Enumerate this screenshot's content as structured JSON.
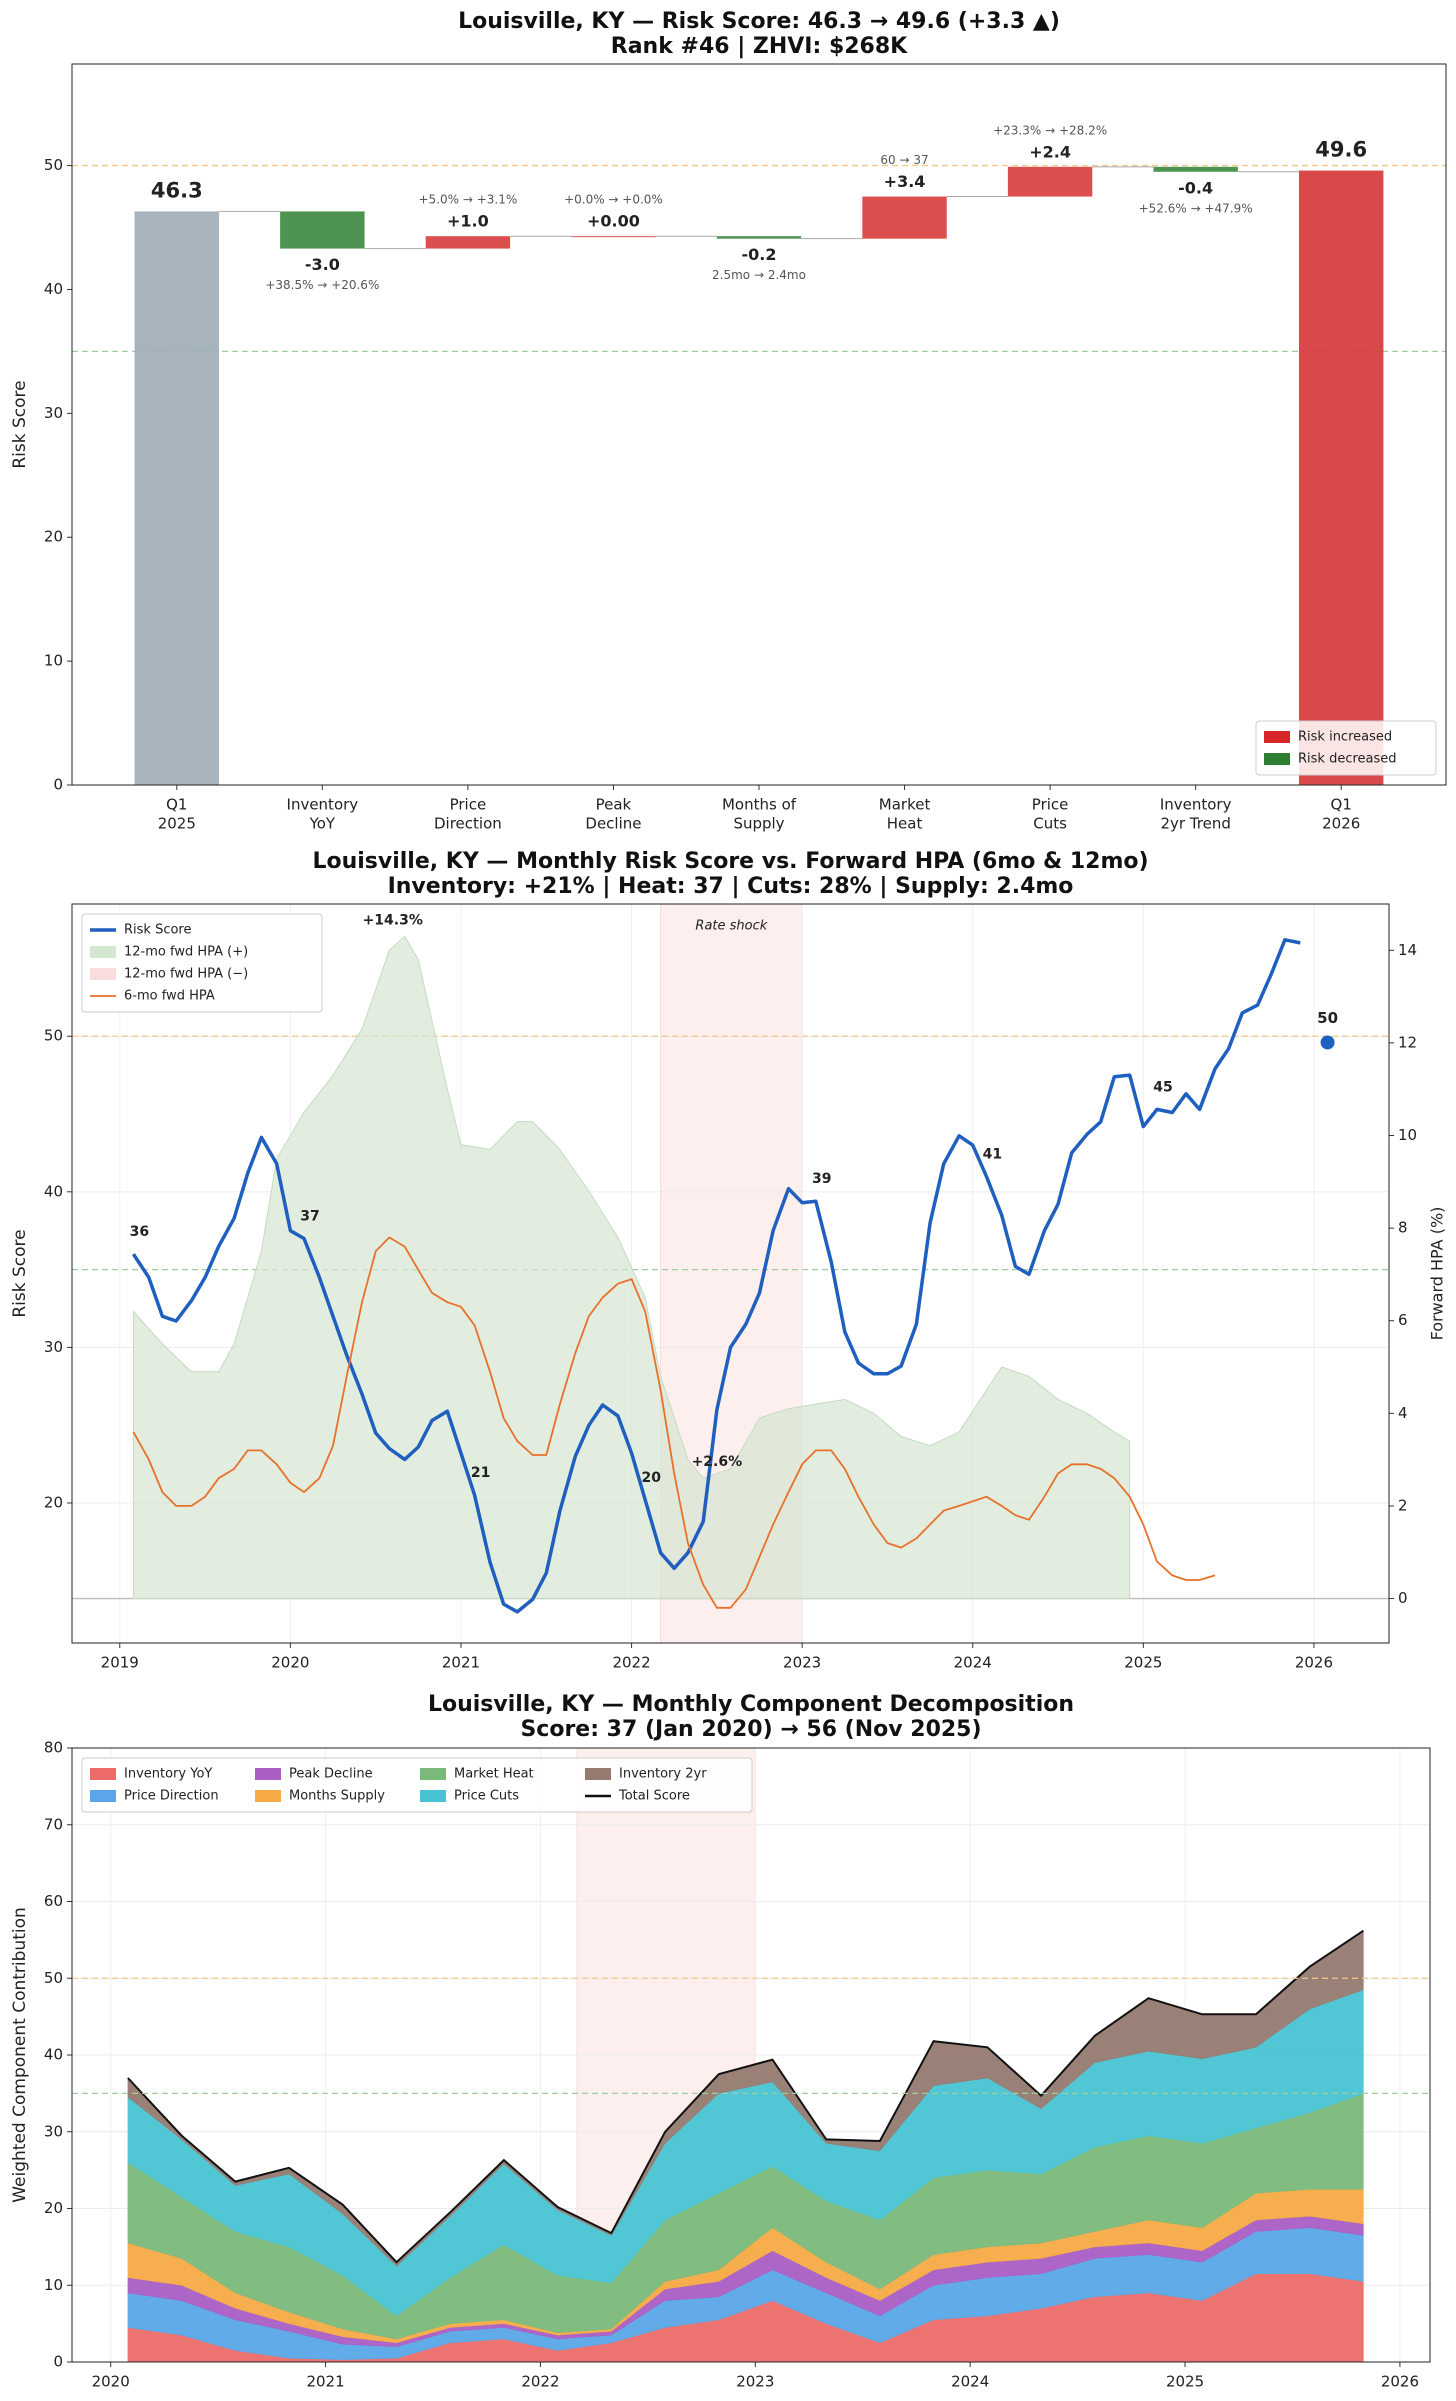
{
  "chart_data": [
    {
      "type": "waterfall",
      "title": "Louisville, KY — Risk Score: 46.3 → 49.6 (+3.3 ▲)",
      "subtitle": "Rank #46  |  ZHVI: $268K",
      "ylabel": "Risk Score",
      "categories": [
        [
          "Q1",
          "2025"
        ],
        [
          "Inventory",
          "YoY"
        ],
        [
          "Price",
          "Direction"
        ],
        [
          "Peak",
          "Decline"
        ],
        [
          "Months of",
          "Supply"
        ],
        [
          "Market",
          "Heat"
        ],
        [
          "Price",
          "Cuts"
        ],
        [
          "Inventory",
          "2yr Trend"
        ],
        [
          "Q1",
          "2026"
        ]
      ],
      "measures": [
        "total",
        "relative",
        "relative",
        "relative",
        "relative",
        "relative",
        "relative",
        "relative",
        "total"
      ],
      "values": [
        46.3,
        -3.0,
        1.0,
        0.0,
        -0.2,
        3.4,
        2.4,
        -0.4,
        49.6
      ],
      "value_labels": [
        "46.3",
        "-3.0",
        "+1.0",
        "+0.00",
        "-0.2",
        "+3.4",
        "+2.4",
        "-0.4",
        "49.6"
      ],
      "annotations": [
        null,
        "+38.5% → +20.6%",
        "+5.0% → +3.1%",
        "+0.0% → +0.0%",
        "2.5mo → 2.4mo",
        "60 → 37",
        "+23.3% → +28.2%",
        "+52.6% → +47.9%",
        null
      ],
      "bar_colors": [
        "#a0aeb8",
        "#3d8b40",
        "#d94040",
        "#d94040",
        "#3d8b40",
        "#d94040",
        "#d94040",
        "#3d8b40",
        "#d63a3a"
      ],
      "value_label_colors": [
        "#4a6274",
        "#2e7d32",
        "#d62728",
        "#d62728",
        "#2e7d32",
        "#d62728",
        "#d62728",
        "#2e7d32",
        "#d62728"
      ],
      "ylim": [
        0,
        58.2
      ],
      "yticks": [
        0,
        10,
        20,
        30,
        40,
        50
      ],
      "grid": false,
      "reference_lines": [
        {
          "value": 50,
          "color": "#f3c98b"
        },
        {
          "value": 35,
          "color": "#9fcf9f"
        }
      ],
      "legend": [
        {
          "name": "Risk increased",
          "color": "#d62728"
        },
        {
          "name": "Risk decreased",
          "color": "#2e7d32"
        }
      ],
      "legend_position": "lower right"
    },
    {
      "type": "line",
      "title": "Louisville, KY — Monthly Risk Score vs. Forward HPA (6mo & 12mo)",
      "subtitle": "Inventory: +21%  |  Heat: 37  |  Cuts: 28%  |  Supply: 2.4mo",
      "ylabel": "Risk Score",
      "ylabel_color": "#1f5fbf",
      "y2label": "Forward HPA (%)",
      "xlim": [
        2018.72,
        2026.44
      ],
      "xticks": [
        2019,
        2020,
        2021,
        2022,
        2023,
        2024,
        2025,
        2026
      ],
      "ylim": [
        11,
        58.5
      ],
      "yticks": [
        20,
        30,
        40,
        50
      ],
      "y2lim": [
        -0.96,
        15
      ],
      "y2ticks": [
        0,
        2,
        4,
        6,
        8,
        10,
        12,
        14
      ],
      "grid": true,
      "reference_lines": [
        {
          "value": 50,
          "color": "#f3c98b"
        },
        {
          "value": 35,
          "color": "#9fcf9f"
        },
        {
          "value": 0,
          "axis": "y2",
          "color": "#bbbbbb"
        }
      ],
      "shaded_regions": [
        {
          "x0": 2022.17,
          "x1": 2023.0,
          "label": "Rate shock",
          "color": "#f9dcd8"
        }
      ],
      "series": [
        {
          "name": "Risk Score",
          "color": "#1f5fbf",
          "kind": "line",
          "width": 3.5,
          "x": [
            2019.08,
            2019.17,
            2019.25,
            2019.33,
            2019.42,
            2019.5,
            2019.58,
            2019.67,
            2019.75,
            2019.83,
            2019.92,
            2020.0,
            2020.08,
            2020.17,
            2020.25,
            2020.33,
            2020.42,
            2020.5,
            2020.58,
            2020.67,
            2020.75,
            2020.83,
            2020.92,
            2021.0,
            2021.08,
            2021.17,
            2021.25,
            2021.33,
            2021.42,
            2021.5,
            2021.58,
            2021.67,
            2021.75,
            2021.83,
            2021.92,
            2022.0,
            2022.08,
            2022.17,
            2022.25,
            2022.33,
            2022.42,
            2022.5,
            2022.58,
            2022.67,
            2022.75,
            2022.83,
            2022.92,
            2023.0,
            2023.08,
            2023.17,
            2023.25,
            2023.33,
            2023.42,
            2023.5,
            2023.58,
            2023.67,
            2023.75,
            2023.83,
            2023.92,
            2024.0,
            2024.08,
            2024.17,
            2024.25,
            2024.33,
            2024.42,
            2024.5,
            2024.58,
            2024.67,
            2024.75,
            2024.83,
            2024.92,
            2025.0,
            2025.08,
            2025.17,
            2025.25,
            2025.33,
            2025.42,
            2025.5,
            2025.58,
            2025.67,
            2025.75,
            2025.83,
            2025.92
          ],
          "values": [
            36,
            34.5,
            32,
            31.7,
            33,
            34.5,
            36.5,
            38.3,
            41.2,
            43.5,
            41.8,
            37.5,
            37.0,
            34.5,
            32,
            29.5,
            27,
            24.5,
            23.5,
            22.8,
            23.6,
            25.3,
            25.9,
            23.2,
            20.5,
            16.2,
            13.5,
            13.0,
            13.8,
            15.5,
            19.5,
            23.0,
            25.0,
            26.3,
            25.6,
            23.2,
            20.2,
            16.8,
            15.8,
            16.8,
            18.8,
            26,
            30,
            31.5,
            33.5,
            37.5,
            40.2,
            39.3,
            39.4,
            35.5,
            31,
            29,
            28.3,
            28.3,
            28.8,
            31.5,
            38,
            41.8,
            43.6,
            43,
            41,
            38.5,
            35.2,
            34.7,
            37.5,
            39.2,
            42.5,
            43.7,
            44.5,
            47.4,
            47.5,
            44.2,
            45.3,
            45.1,
            46.3,
            45.3,
            47.9,
            49.2,
            51.5,
            52,
            54,
            56.2,
            56
          ]
        },
        {
          "name": "12-mo fwd HPA (+)",
          "color": "#d5e6d2",
          "kind": "area",
          "axis": "y2",
          "x": [
            2019.08,
            2019.25,
            2019.42,
            2019.58,
            2019.67,
            2019.83,
            2019.92,
            2020.08,
            2020.25,
            2020.42,
            2020.58,
            2020.67,
            2020.75,
            2020.92,
            2021.0,
            2021.17,
            2021.33,
            2021.42,
            2021.58,
            2021.75,
            2021.92,
            2022.08,
            2022.17,
            2022.33,
            2022.42,
            2022.58,
            2022.75,
            2022.92,
            2023.08,
            2023.25,
            2023.42,
            2023.58,
            2023.75,
            2023.92,
            2024.08,
            2024.17,
            2024.33,
            2024.5,
            2024.67,
            2024.83,
            2024.92
          ],
          "values": [
            6.2,
            5.5,
            4.9,
            4.9,
            5.5,
            7.5,
            9.5,
            10.5,
            11.3,
            12.3,
            14.0,
            14.3,
            13.8,
            11,
            9.8,
            9.7,
            10.3,
            10.3,
            9.7,
            8.8,
            7.8,
            6.5,
            4.8,
            3.0,
            2.6,
            2.8,
            3.9,
            4.1,
            4.2,
            4.3,
            4.0,
            3.5,
            3.3,
            3.6,
            4.5,
            5.0,
            4.8,
            4.3,
            4.0,
            3.6,
            3.4
          ]
        },
        {
          "name": "6-mo fwd HPA",
          "color": "#e8712a",
          "kind": "line",
          "axis": "y2",
          "width": 1.8,
          "x": [
            2019.08,
            2019.17,
            2019.25,
            2019.33,
            2019.42,
            2019.5,
            2019.58,
            2019.67,
            2019.75,
            2019.83,
            2019.92,
            2020.0,
            2020.08,
            2020.17,
            2020.25,
            2020.33,
            2020.42,
            2020.5,
            2020.58,
            2020.67,
            2020.75,
            2020.83,
            2020.92,
            2021.0,
            2021.08,
            2021.17,
            2021.25,
            2021.33,
            2021.42,
            2021.5,
            2021.58,
            2021.67,
            2021.75,
            2021.83,
            2021.92,
            2022.0,
            2022.08,
            2022.17,
            2022.25,
            2022.33,
            2022.42,
            2022.5,
            2022.58,
            2022.67,
            2022.75,
            2022.83,
            2022.92,
            2023.0,
            2023.08,
            2023.17,
            2023.25,
            2023.33,
            2023.42,
            2023.5,
            2023.58,
            2023.67,
            2023.75,
            2023.83,
            2023.92,
            2024.0,
            2024.08,
            2024.17,
            2024.25,
            2024.33,
            2024.42,
            2024.5,
            2024.58,
            2024.67,
            2024.75,
            2024.83,
            2024.92,
            2025.0,
            2025.08,
            2025.17,
            2025.25,
            2025.33,
            2025.42
          ],
          "values": [
            3.6,
            3.0,
            2.3,
            2.0,
            2.0,
            2.2,
            2.6,
            2.8,
            3.2,
            3.2,
            2.9,
            2.5,
            2.3,
            2.6,
            3.3,
            4.8,
            6.4,
            7.5,
            7.8,
            7.6,
            7.1,
            6.6,
            6.4,
            6.3,
            5.9,
            4.9,
            3.9,
            3.4,
            3.1,
            3.1,
            4.2,
            5.3,
            6.1,
            6.5,
            6.8,
            6.9,
            6.2,
            4.5,
            2.7,
            1.2,
            0.3,
            -0.2,
            -0.2,
            0.2,
            0.9,
            1.6,
            2.3,
            2.9,
            3.2,
            3.2,
            2.8,
            2.2,
            1.6,
            1.2,
            1.1,
            1.3,
            1.6,
            1.9,
            2.0,
            2.1,
            2.2,
            2.0,
            1.8,
            1.7,
            2.2,
            2.7,
            2.9,
            2.9,
            2.8,
            2.6,
            2.2,
            1.6,
            0.8,
            0.5,
            0.4,
            0.4,
            0.5
          ]
        }
      ],
      "extra_legend": [
        {
          "name": "12-mo fwd HPA (−)",
          "color": "#fbdcdc"
        }
      ],
      "annotations": [
        {
          "text": "36",
          "x": 2019.08,
          "y": 36,
          "color": "#1f5fbf"
        },
        {
          "text": "37",
          "x": 2020.08,
          "y": 37,
          "color": "#1f5fbf"
        },
        {
          "text": "21",
          "x": 2021.08,
          "y": 20.5,
          "color": "#1f5fbf"
        },
        {
          "text": "20",
          "x": 2022.08,
          "y": 20.2,
          "color": "#1f5fbf"
        },
        {
          "text": "39",
          "x": 2023.08,
          "y": 39.4,
          "color": "#1f5fbf"
        },
        {
          "text": "41",
          "x": 2024.08,
          "y": 41,
          "color": "#1f5fbf"
        },
        {
          "text": "45",
          "x": 2025.08,
          "y": 45.3,
          "color": "#1f5fbf"
        },
        {
          "text": "+14.3%",
          "x": 2020.6,
          "y": 14.3,
          "axis": "y2",
          "color": "#2e7d32"
        },
        {
          "text": "+2.6%",
          "x": 2022.5,
          "y": 2.6,
          "axis": "y2",
          "color": "#2e7d32"
        }
      ],
      "current_point": {
        "x": 2026.08,
        "value": 49.6,
        "label": "50",
        "color": "#1f5fbf"
      },
      "legend_position": "upper left"
    },
    {
      "type": "area",
      "title": "Louisville, KY — Monthly Component Decomposition",
      "subtitle": "Score: 37 (Jan 2020) → 56 (Nov 2025)",
      "ylabel": "Weighted Component Contribution",
      "stacked": true,
      "xlim": [
        2019.82,
        2026.14
      ],
      "xticks": [
        2020,
        2021,
        2022,
        2023,
        2024,
        2025,
        2026
      ],
      "ylim": [
        0,
        80
      ],
      "yticks": [
        0,
        10,
        20,
        30,
        40,
        50,
        60,
        70,
        80
      ],
      "grid": true,
      "reference_lines": [
        {
          "value": 50,
          "color": "#f3c98b"
        },
        {
          "value": 35,
          "color": "#9fcf9f"
        }
      ],
      "shaded_regions": [
        {
          "x0": 2022.17,
          "x1": 2023.0,
          "color": "#f9dcd8"
        }
      ],
      "x": [
        2020.08,
        2020.33,
        2020.58,
        2020.83,
        2021.08,
        2021.33,
        2021.58,
        2021.83,
        2022.08,
        2022.33,
        2022.58,
        2022.83,
        2023.08,
        2023.33,
        2023.58,
        2023.83,
        2024.08,
        2024.33,
        2024.58,
        2024.83,
        2025.08,
        2025.33,
        2025.58,
        2025.83
      ],
      "series": [
        {
          "name": "Inventory YoY",
          "color": "#ec6b69",
          "kind": "area",
          "values": [
            4.5,
            3.5,
            1.5,
            0.5,
            0.3,
            0.5,
            2.5,
            3,
            1.5,
            2.5,
            4.5,
            5.5,
            8,
            5,
            2.5,
            5.5,
            6,
            7,
            8.5,
            9,
            8,
            11.5,
            11.5,
            10.5
          ]
        },
        {
          "name": "Price Direction",
          "color": "#5aa6e8",
          "kind": "area",
          "values": [
            4.5,
            4.5,
            4,
            3.5,
            2,
            1.5,
            1.5,
            1.5,
            1.5,
            1,
            3.5,
            3,
            4,
            4,
            3.5,
            4.5,
            5,
            4.5,
            5,
            5,
            5,
            5.5,
            6,
            6
          ]
        },
        {
          "name": "Peak Decline",
          "color": "#a95ec4",
          "kind": "area",
          "values": [
            2,
            2,
            1.5,
            1,
            1,
            0.5,
            0.5,
            0.5,
            0.5,
            0.5,
            1.5,
            2,
            2.5,
            2,
            2,
            2,
            2,
            2,
            1.5,
            1.5,
            1.5,
            1.5,
            1.5,
            1.5
          ]
        },
        {
          "name": "Months Supply",
          "color": "#f6aa45",
          "kind": "area",
          "values": [
            4.5,
            3.5,
            2,
            1.5,
            1,
            0.5,
            0.5,
            0.5,
            0.3,
            0.3,
            1,
            1.5,
            3,
            2,
            1.5,
            2,
            2,
            2,
            2,
            3,
            3,
            3.5,
            3.5,
            4.5
          ]
        },
        {
          "name": "Market Heat",
          "color": "#7ab97a",
          "kind": "area",
          "values": [
            10.5,
            8,
            8,
            8.5,
            7,
            3,
            6,
            9.8,
            7.5,
            6,
            8,
            10,
            8,
            8,
            9,
            10,
            10,
            9,
            11,
            11,
            11,
            8.5,
            10,
            12.5
          ]
        },
        {
          "name": "Price Cuts",
          "color": "#48c3d3",
          "kind": "area",
          "values": [
            8.5,
            7.5,
            6,
            9.5,
            8,
            6.5,
            8,
            10.5,
            8.5,
            6.2,
            10,
            13,
            11,
            7.5,
            9,
            12,
            12,
            8.5,
            11,
            11,
            11,
            10.5,
            13.5,
            13.5
          ]
        },
        {
          "name": "Inventory 2yr",
          "color": "#957a70",
          "kind": "area",
          "values": [
            2.5,
            0.5,
            0.5,
            0.8,
            1.2,
            0.5,
            0.5,
            0.5,
            0.4,
            0.3,
            1.5,
            2.5,
            2.9,
            0.5,
            1.3,
            5.8,
            4,
            1.7,
            3.5,
            6.9,
            5.8,
            4.3,
            5.5,
            7.7
          ]
        },
        {
          "name": "Total Score",
          "color": "#111111",
          "kind": "line",
          "width": 2,
          "values": [
            37,
            29.5,
            23.5,
            25.3,
            20.5,
            13,
            19.5,
            26.3,
            20.2,
            16.8,
            30,
            37.5,
            39.4,
            29,
            28.8,
            41.8,
            41,
            34.7,
            42.5,
            47.4,
            45.3,
            45.3,
            51.5,
            56.2
          ]
        }
      ],
      "legend_position": "upper left",
      "legend_columns": 4
    }
  ]
}
